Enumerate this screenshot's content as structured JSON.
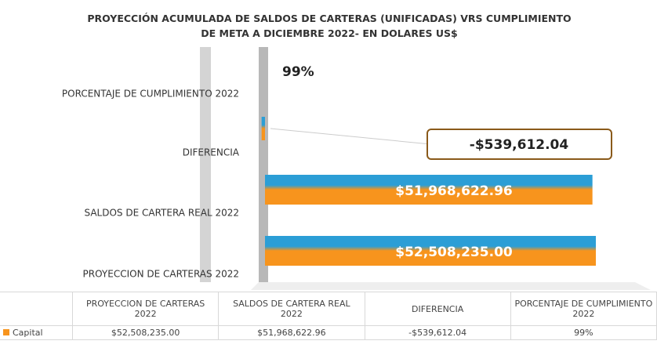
{
  "chart_data": {
    "type": "bar",
    "orientation": "horizontal",
    "title": [
      "PROYECCIÓN ACUMULADA DE SALDOS DE CARTERAS (UNIFICADAS)  VRS CUMPLIMIENTO",
      "DE META  A DICIEMBRE 2022-  EN DOLARES US$"
    ],
    "categories": [
      "PROYECCION DE CARTERAS  2022",
      "SALDOS DE CARTERA REAL  2022",
      "DIFERENCIA",
      "PORCENTAJE DE CUMPLIMIENTO 2022"
    ],
    "series": [
      {
        "name": "Capital",
        "color": "#f7941d",
        "top_color": "#2b9ed6",
        "values": [
          52508235.0,
          51968622.96,
          -539612.04,
          99
        ],
        "value_labels": [
          "$52,508,235.00",
          "$51,968,622.96",
          "-$539,612.04",
          "99%"
        ]
      }
    ],
    "data_table": true
  }
}
